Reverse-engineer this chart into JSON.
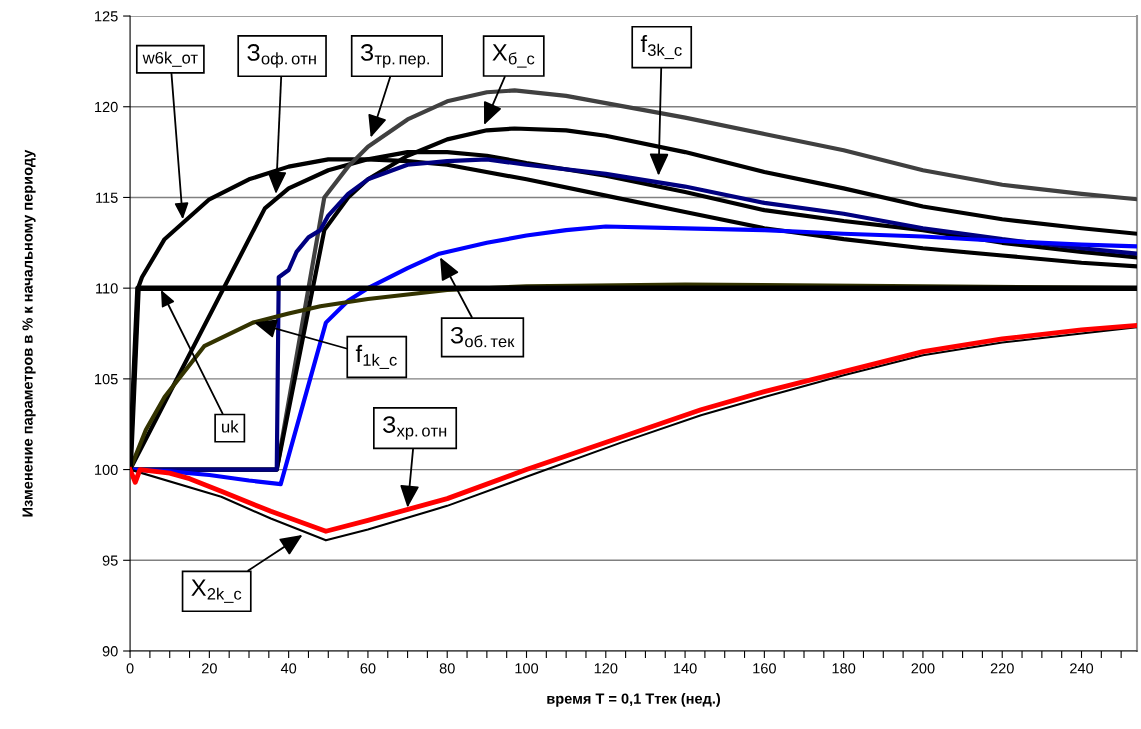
{
  "chart_data": {
    "type": "line",
    "xlabel": "время Т = 0,1 Ттек (нед.)",
    "ylabel": "Изменение параметров в % к начальному периоду",
    "xlim": [
      0,
      254
    ],
    "ylim": [
      90,
      125
    ],
    "xticks": [
      0,
      {
        "value": 5,
        "label": null
      },
      {
        "value": 10,
        "label": null
      },
      {
        "value": 15,
        "label": null
      },
      20,
      {
        "value": 25,
        "label": null
      },
      {
        "value": 30,
        "label": null
      },
      {
        "value": 35,
        "label": null
      },
      40,
      {
        "value": 45,
        "label": null
      },
      {
        "value": 50,
        "label": null
      },
      {
        "value": 55,
        "label": null
      },
      60,
      {
        "value": 65,
        "label": null
      },
      {
        "value": 70,
        "label": null
      },
      {
        "value": 75,
        "label": null
      },
      80,
      {
        "value": 85,
        "label": null
      },
      {
        "value": 90,
        "label": null
      },
      {
        "value": 95,
        "label": null
      },
      100,
      {
        "value": 105,
        "label": null
      },
      {
        "value": 110,
        "label": null
      },
      {
        "value": 115,
        "label": null
      },
      120,
      {
        "value": 125,
        "label": null
      },
      {
        "value": 130,
        "label": null
      },
      {
        "value": 135,
        "label": null
      },
      140,
      {
        "value": 145,
        "label": null
      },
      {
        "value": 150,
        "label": null
      },
      {
        "value": 155,
        "label": null
      },
      160,
      {
        "value": 165,
        "label": null
      },
      {
        "value": 170,
        "label": null
      },
      {
        "value": 175,
        "label": null
      },
      180,
      {
        "value": 185,
        "label": null
      },
      {
        "value": 190,
        "label": null
      },
      {
        "value": 195,
        "label": null
      },
      200,
      {
        "value": 205,
        "label": null
      },
      {
        "value": 210,
        "label": null
      },
      {
        "value": 215,
        "label": null
      },
      220,
      {
        "value": 225,
        "label": null
      },
      {
        "value": 230,
        "label": null
      },
      {
        "value": 235,
        "label": null
      },
      240,
      {
        "value": 245,
        "label": null
      },
      {
        "value": 250,
        "label": null
      }
    ],
    "yticks": [
      90,
      95,
      100,
      105,
      110,
      115,
      120,
      125
    ],
    "grid": "y",
    "series": [
      {
        "color": "#000000",
        "x": [
          0,
          2,
          3,
          8.7,
          20,
          30,
          40,
          50,
          60,
          70,
          80,
          100,
          120,
          140,
          160,
          180,
          200,
          220,
          240,
          254
        ],
        "values": [
          100,
          110,
          110.6,
          112.7,
          114.9,
          116,
          116.7,
          117.1,
          117.1,
          117.0,
          116.8,
          116,
          115.1,
          114.2,
          113.3,
          112.7,
          112.2,
          111.8,
          111.4,
          111.2
        ]
      },
      {
        "color": "#000000",
        "x": [
          0,
          34,
          40,
          50,
          60,
          70,
          80,
          90,
          100,
          120,
          140,
          160,
          180,
          200,
          220,
          240,
          254
        ],
        "values": [
          100,
          114.4,
          115.5,
          116.5,
          117.1,
          117.5,
          117.5,
          117.3,
          116.9,
          116.2,
          115.3,
          114.3,
          113.7,
          113.2,
          112.5,
          112.0,
          111.7
        ]
      },
      {
        "color": "#404040",
        "x": [
          0,
          37,
          49,
          55,
          60,
          70,
          80,
          90,
          97,
          110,
          120,
          140,
          160,
          180,
          200,
          220,
          240,
          254
        ],
        "values": [
          100,
          100,
          115,
          116.7,
          117.8,
          119.3,
          120.3,
          120.8,
          120.9,
          120.6,
          120.2,
          119.4,
          118.5,
          117.6,
          116.5,
          115.7,
          115.2,
          114.9
        ]
      },
      {
        "color": "#000000",
        "x": [
          0,
          37,
          49,
          55,
          60,
          70,
          80,
          90,
          97,
          110,
          120,
          140,
          160,
          180,
          200,
          220,
          240,
          254
        ],
        "values": [
          100,
          100,
          113.2,
          115,
          116,
          117.3,
          118.2,
          118.7,
          118.8,
          118.7,
          118.4,
          117.5,
          116.4,
          115.5,
          114.5,
          113.8,
          113.3,
          113.0
        ]
      },
      {
        "color": "#000080",
        "x": [
          0,
          37,
          37.5,
          40,
          42,
          45,
          48,
          50,
          55,
          60,
          70,
          80,
          90,
          100,
          120,
          140,
          160,
          180,
          200,
          220,
          240,
          254
        ],
        "values": [
          100,
          100,
          110.6,
          111,
          112,
          112.8,
          113.2,
          114,
          115.2,
          116,
          116.8,
          117.0,
          117.1,
          116.8,
          116.3,
          115.6,
          114.7,
          114.1,
          113.3,
          112.7,
          112.2,
          111.9
        ]
      },
      {
        "color": "#0000ff",
        "x": [
          0,
          10,
          20,
          30,
          38,
          49.4,
          55,
          60,
          70,
          78,
          90,
          100,
          110,
          120,
          140,
          160,
          180,
          200,
          220,
          240,
          254
        ],
        "values": [
          100,
          99.9,
          99.7,
          99.4,
          99.2,
          108.1,
          109.3,
          110,
          111.1,
          111.9,
          112.5,
          112.9,
          113.2,
          113.4,
          113.3,
          113.2,
          113.0,
          112.85,
          112.6,
          112.4,
          112.3
        ]
      },
      {
        "color": "#333300",
        "x": [
          0,
          4,
          8.7,
          18.7,
          31,
          40,
          48,
          60,
          80,
          100,
          140,
          200,
          254
        ],
        "values": [
          100,
          102.2,
          104,
          106.8,
          108.1,
          108.6,
          109.0,
          109.4,
          109.9,
          110.1,
          110.2,
          110.1,
          110
        ]
      },
      {
        "color": "#000000",
        "x": [
          0,
          2,
          254
        ],
        "values": [
          100,
          110,
          110
        ]
      },
      {
        "color": "#000000",
        "x": [
          0,
          23,
          35.5,
          49.4,
          60,
          80,
          100,
          124,
          144,
          160,
          180,
          200,
          220,
          240,
          254
        ],
        "values": [
          100,
          98.5,
          97.3,
          96.1,
          96.7,
          98.0,
          99.6,
          101.5,
          103.0,
          104.0,
          105.2,
          106.3,
          107.0,
          107.5,
          107.85
        ]
      },
      {
        "color": "#ff0000",
        "x": [
          0,
          1.3,
          2.5,
          10,
          15,
          23,
          35.5,
          49.4,
          60,
          80,
          100,
          124,
          144,
          160,
          180,
          200,
          220,
          240,
          254
        ],
        "values": [
          100,
          99.3,
          100,
          99.8,
          99.5,
          98.8,
          97.7,
          96.6,
          97.2,
          98.4,
          100.0,
          101.8,
          103.3,
          104.3,
          105.4,
          106.5,
          107.2,
          107.7,
          107.95
        ]
      }
    ],
    "annotations": [
      {
        "text": "w6k_от",
        "x": 13.3,
        "y": 113.8
      },
      {
        "text": "З$_{оф.отн}$",
        "x": 36.8,
        "y": 115.2
      },
      {
        "text": "З$_{тр.пер.}$",
        "x": 60.7,
        "y": 118.3
      },
      {
        "text": "X$_{б_с}$",
        "x": 89.3,
        "y": 119.0
      },
      {
        "text": "f$_{3k_с}$",
        "x": 133.3,
        "y": 116.2
      },
      {
        "text": "З$_{об.тек}$",
        "x": 78.2,
        "y": 111.7
      },
      {
        "text": "f$_{1k_с}$",
        "x": 31.3,
        "y": 108.1
      },
      {
        "text": "uk",
        "x": 7.8,
        "y": 109.9
      },
      {
        "text": "З$_{хр.отн}$",
        "x": 70,
        "y": 97.9
      },
      {
        "text": "X$_{2k_с}$",
        "x": 43.5,
        "y": 96.4
      }
    ]
  }
}
